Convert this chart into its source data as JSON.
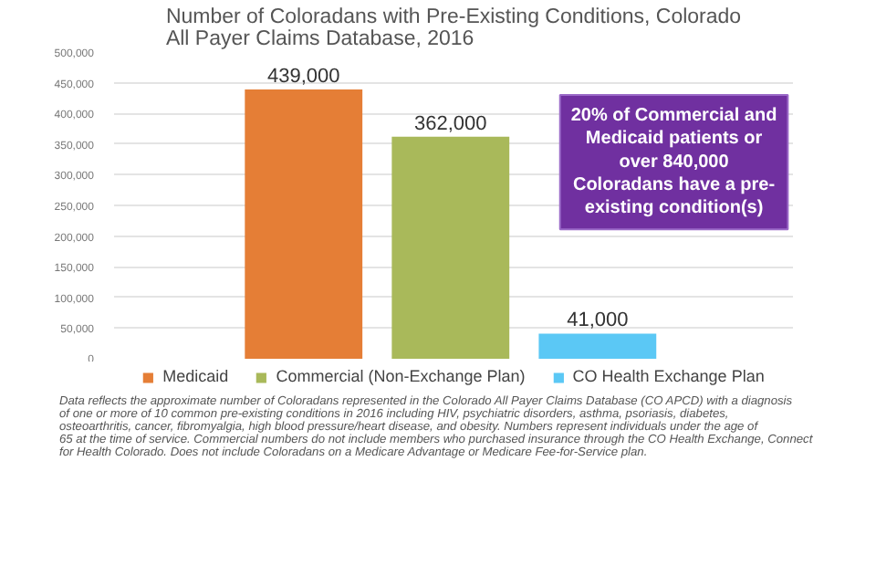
{
  "chart_data": {
    "type": "bar",
    "title": "Number of Coloradans with Pre-Existing Conditions, Colorado All Payer Claims Database, 2016",
    "categories": [
      null
    ],
    "series": [
      {
        "name": "Medicaid",
        "color": "#e57e36",
        "values": [
          439000
        ],
        "value_labels": [
          "439,000"
        ]
      },
      {
        "name": "Commercial (Non-Exchange Plan)",
        "color": "#a9b95a",
        "values": [
          362000
        ],
        "value_labels": [
          "362,000"
        ]
      },
      {
        "name": "CO Health Exchange Plan",
        "color": "#5bc8f5",
        "values": [
          41000
        ],
        "value_labels": [
          "41,000"
        ]
      }
    ],
    "ylim": [
      0,
      500000
    ],
    "yticks": [
      {
        "value": 0,
        "label": "0"
      },
      {
        "value": 50000,
        "label": "50,000"
      },
      {
        "value": 100000,
        "label": "100,000"
      },
      {
        "value": 150000,
        "label": "150,000"
      },
      {
        "value": 200000,
        "label": "200,000"
      },
      {
        "value": 250000,
        "label": "250,000"
      },
      {
        "value": 300000,
        "label": "300,000"
      },
      {
        "value": 350000,
        "label": "350,000"
      },
      {
        "value": 400000,
        "label": "400,000"
      },
      {
        "value": 450000,
        "label": "450,000"
      },
      {
        "value": 500000,
        "label": "500,000"
      }
    ],
    "grid": "y",
    "legend": "bottom",
    "annotations": [
      "20% of Commercial and Medicaid patients or over 840,000 Coloradans have a pre-existing condition(s)",
      "Data reflects the approximate number of Coloradans represented in the Colorado All Payer Claims Database (CO APCD) with a diagnosis of one or more of 10 common pre-existing conditions in 2016 including HIV, psychiatric disorders, asthma, psoriasis, diabetes, osteoarthritis, cancer, fibromyalgia, high blood pressure/heart disease, and obesity. Numbers represent individuals under the age of 65 at the time of service. Commercial numbers do not include members who purchased insurance through the CO Health Exchange, Connect for Health Colorado. Does not include Coloradans on a Medicare Advantage or Medicare Fee-for-Service plan."
    ]
  }
}
